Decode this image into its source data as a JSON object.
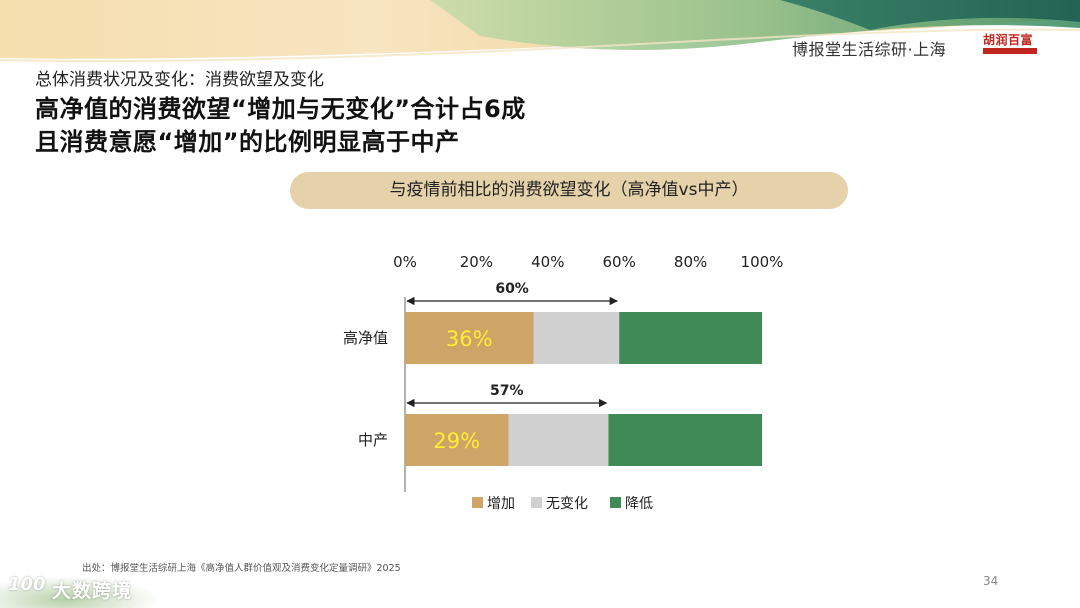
{
  "header": {
    "brand": "博报堂生活综研·上海",
    "logo_text": "胡润百富"
  },
  "slide": {
    "subtitle": "总体消费状况及变化：消费欲望及变化",
    "headline_line1": "高净值的消费欲望“增加与无变化”合计占6成",
    "headline_line2": "且消费意愿“增加”的比例明显高于中产",
    "chart_title": "与疫情前相比的消费欲望变化（高净值vs中产）",
    "source": "出处：博报堂生活综研上海《高净值人群价值观及消费变化定量调研》2025",
    "page_number": "34"
  },
  "watermark": {
    "mark": "100",
    "text": "大数跨境"
  },
  "colors": {
    "increase": "#cfa567",
    "no_change": "#d0d0d0",
    "decrease": "#3f8a55",
    "data_label": "#ffee33",
    "pill": "#e6d2aa"
  },
  "chart_data": {
    "type": "bar",
    "orientation": "horizontal",
    "stacked": true,
    "categories": [
      "高净值",
      "中产"
    ],
    "series": [
      {
        "name": "增加",
        "values": [
          36,
          29
        ],
        "color": "#cfa567"
      },
      {
        "name": "无变化",
        "values": [
          24,
          28
        ],
        "color": "#d0d0d0"
      },
      {
        "name": "降低",
        "values": [
          40,
          43
        ],
        "color": "#3f8a55"
      }
    ],
    "data_labels": [
      "36%",
      "29%"
    ],
    "bracket_labels": [
      "60%",
      "57%"
    ],
    "bracket_values": [
      60,
      57
    ],
    "x_ticks": [
      "0%",
      "20%",
      "40%",
      "60%",
      "80%",
      "100%"
    ],
    "x_tick_values": [
      0,
      20,
      40,
      60,
      80,
      100
    ],
    "xlim": [
      0,
      100
    ],
    "axis_position": "top",
    "legend_position": "bottom",
    "grid": false
  }
}
